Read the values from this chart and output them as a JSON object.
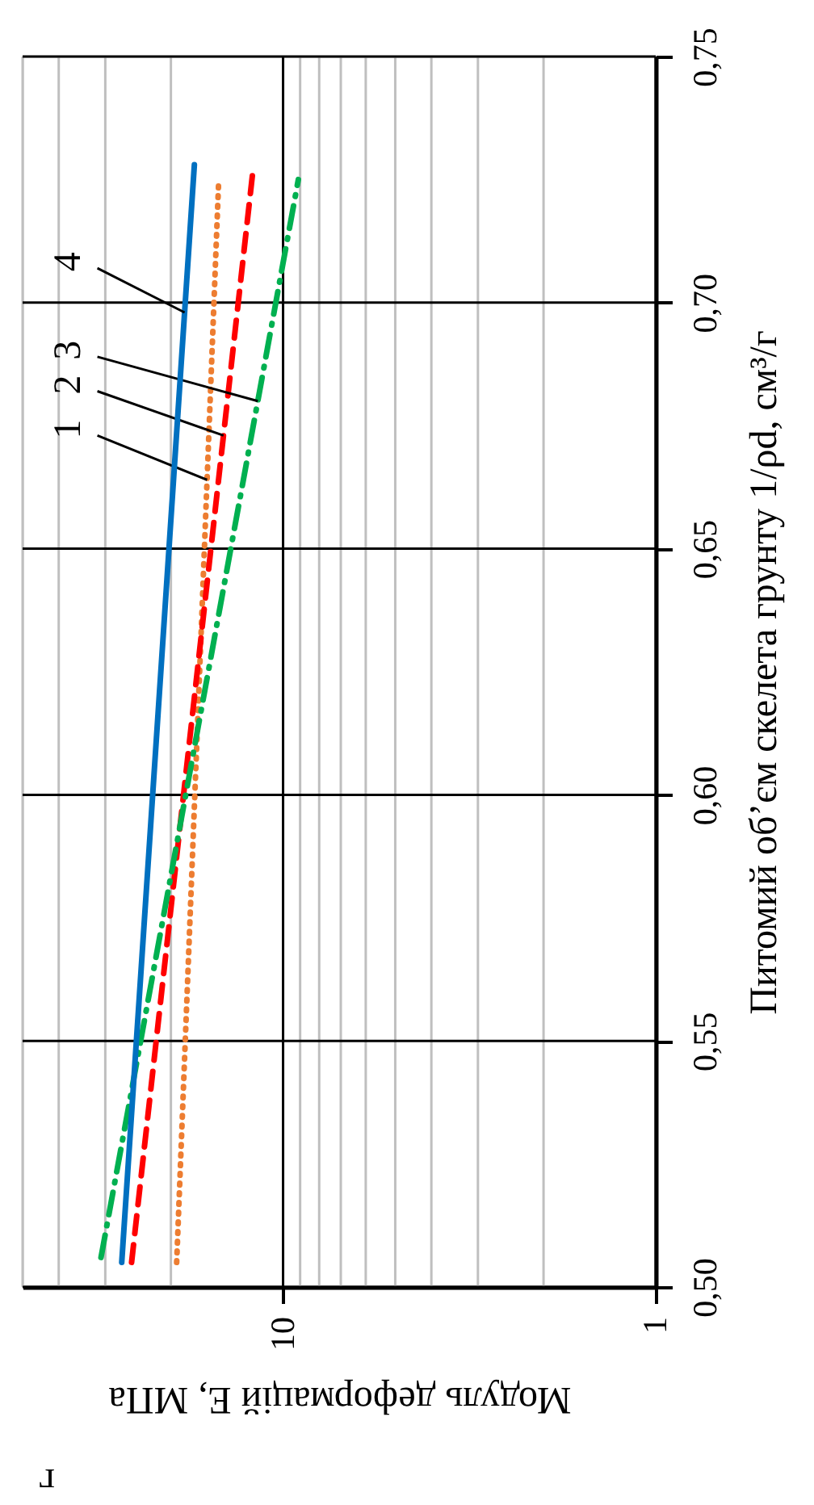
{
  "chart_data": {
    "type": "line",
    "xlabel": "Модуль деформацій E, МПа",
    "ylabel": "Питомий об’єм скелета грунту 1/ρd, см³/г",
    "annotations": [
      "г"
    ],
    "log": "x",
    "xlim": [
      50,
      1
    ],
    "xticks": [
      10,
      1
    ],
    "ylim": [
      0.5,
      0.75
    ],
    "yticks": [
      {
        "value": 0.5,
        "label": "0,50"
      },
      {
        "value": 0.55,
        "label": "0,55"
      },
      {
        "value": 0.6,
        "label": "0,60"
      },
      {
        "value": 0.65,
        "label": "0,65"
      },
      {
        "value": 0.7,
        "label": "0,70"
      },
      {
        "value": 0.75,
        "label": "0,75"
      }
    ],
    "grid": true,
    "series": [
      {
        "name": "1",
        "color": "#ed7d31",
        "line_style": "dotted",
        "x": [
          19.3,
          14.9
        ],
        "values": [
          0.505,
          0.724
        ]
      },
      {
        "name": "2",
        "color": "#ff0000",
        "line_style": "dashed",
        "x": [
          25.5,
          12.0
        ],
        "values": [
          0.505,
          0.728
        ]
      },
      {
        "name": "3",
        "color": "#00b050",
        "line_style": "dashdot",
        "x": [
          30.8,
          9.1
        ],
        "values": [
          0.506,
          0.725
        ]
      },
      {
        "name": "4",
        "color": "#0070c0",
        "line_style": "solid",
        "x": [
          27.1,
          17.3
        ],
        "values": [
          0.505,
          0.728
        ]
      }
    ]
  }
}
